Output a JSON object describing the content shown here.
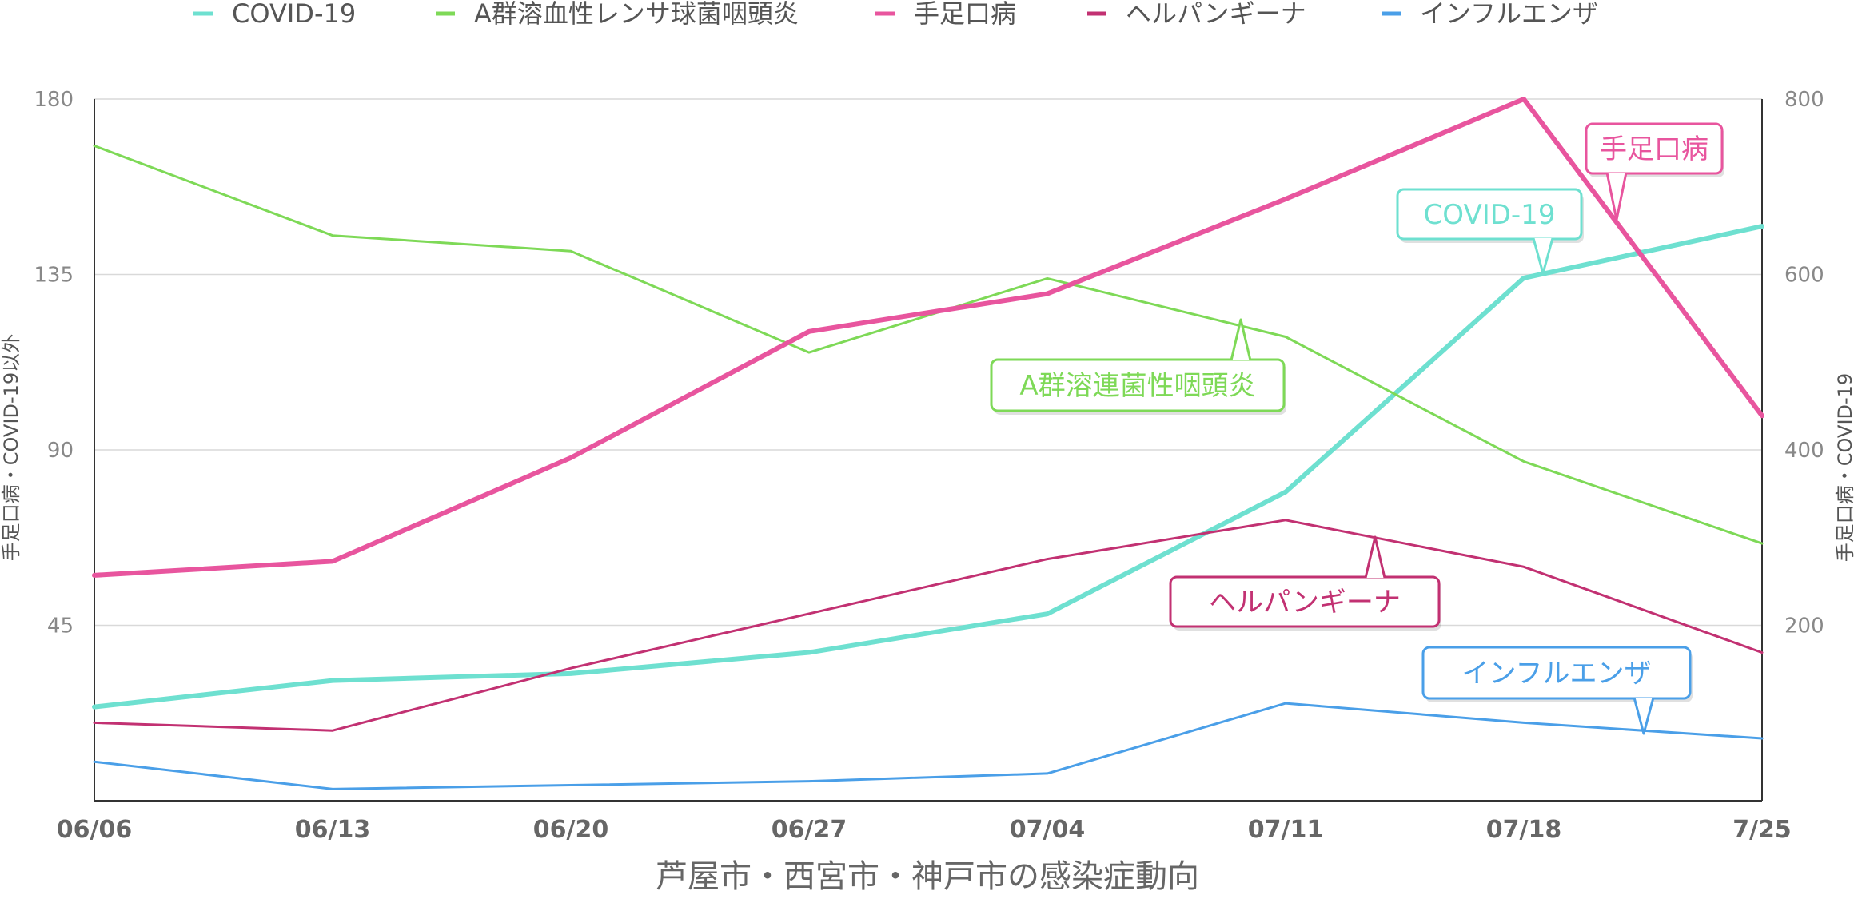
{
  "chart_data": {
    "type": "line",
    "xlabel": "芦屋市・西宮市・神戸市の感染症動向",
    "ylabel_left": "手足口病・COVID-19以外",
    "ylabel_right": "手足口病・COVID-19",
    "categories": [
      "06/06",
      "06/13",
      "06/20",
      "06/27",
      "07/04",
      "07/11",
      "07/18",
      "7/25"
    ],
    "y_left": {
      "min": 0,
      "max": 180,
      "ticks": [
        45,
        90,
        135,
        180
      ]
    },
    "y_right": {
      "min": 0,
      "max": 800,
      "ticks": [
        200,
        400,
        600,
        800
      ]
    },
    "grid": true,
    "legend_position": "top",
    "series": [
      {
        "name": "COVID-19",
        "axis": "right",
        "color": "#6EE0D0",
        "width": 6,
        "values": [
          107,
          137,
          145,
          169,
          213,
          352,
          596,
          655
        ]
      },
      {
        "name": "A群溶血性レンサ球菌咽頭炎",
        "axis": "left",
        "color": "#7ED957",
        "width": 3,
        "values": [
          168,
          145,
          141,
          115,
          134,
          119,
          87,
          66
        ]
      },
      {
        "name": "手足口病",
        "axis": "right",
        "color": "#E8559E",
        "width": 6,
        "values": [
          257,
          273,
          391,
          535,
          578,
          686,
          800,
          439
        ]
      },
      {
        "name": "ヘルパンギーナ",
        "axis": "left",
        "color": "#C23172",
        "width": 3,
        "values": [
          20,
          18,
          34,
          48,
          62,
          72,
          60,
          38
        ]
      },
      {
        "name": "インフルエンザ",
        "axis": "left",
        "color": "#4A9FE8",
        "width": 3,
        "values": [
          10,
          3,
          4,
          5,
          7,
          25,
          20,
          16
        ]
      }
    ],
    "callouts": [
      {
        "text": "手足口病",
        "color": "#E8559E"
      },
      {
        "text": "COVID-19",
        "color": "#6EE0D0"
      },
      {
        "text": "A群溶連菌性咽頭炎",
        "color": "#7ED957"
      },
      {
        "text": "ヘルパンギーナ",
        "color": "#C23172"
      },
      {
        "text": "インフルエンザ",
        "color": "#4A9FE8"
      }
    ]
  }
}
